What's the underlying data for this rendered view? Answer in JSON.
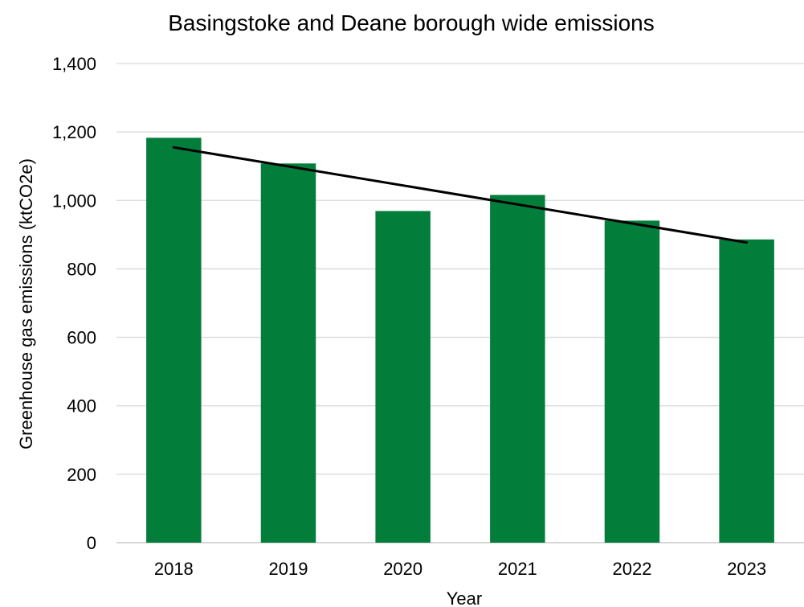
{
  "chart_data": {
    "type": "bar",
    "title": "Basingstoke and Deane borough wide emissions",
    "xlabel": "Year",
    "ylabel": "Greenhouse gas emissions (ktCO2e)",
    "categories": [
      "2018",
      "2019",
      "2020",
      "2021",
      "2022",
      "2023"
    ],
    "values": [
      1183,
      1108,
      969,
      1016,
      941,
      886
    ],
    "ylim": [
      0,
      1400
    ],
    "yticks": [
      0,
      200,
      400,
      600,
      800,
      1000,
      1200,
      1400
    ],
    "ytick_labels": [
      "0",
      "200",
      "400",
      "600",
      "800",
      "1,000",
      "1,200",
      "1,400"
    ],
    "grid": true,
    "bar_color": "#037d3a",
    "trendline": {
      "type": "linear",
      "color": "#000000",
      "start": 1155,
      "end": 877
    }
  }
}
